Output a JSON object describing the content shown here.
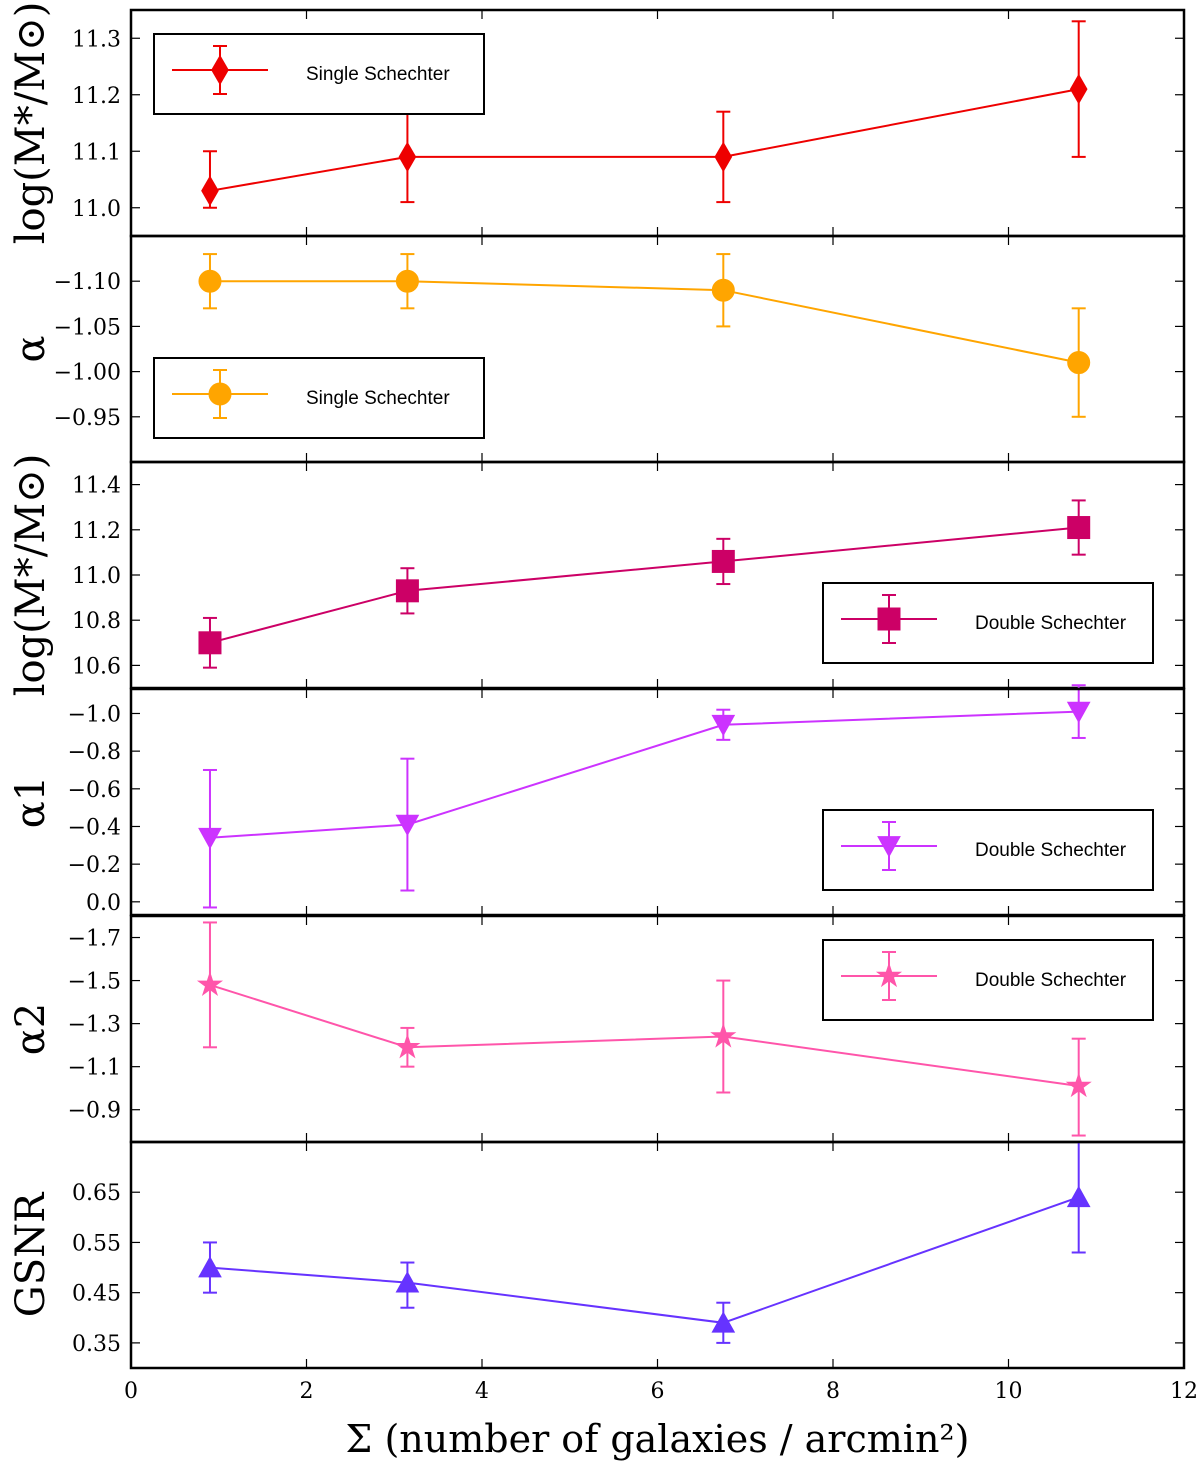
{
  "chart_data": {
    "type": "line",
    "xlabel": "Σ (number of galaxies / arcmin²)",
    "xlim": [
      0,
      12
    ],
    "xticks": [
      0,
      2,
      4,
      6,
      8,
      10,
      12
    ],
    "x": [
      0.9,
      3.15,
      6.75,
      10.8
    ],
    "panels": [
      {
        "ylabel": "log(M*/M⊙)",
        "ylim": [
          10.95,
          11.35
        ],
        "yticks": [
          11.0,
          11.1,
          11.2,
          11.3
        ],
        "ytick_labels": [
          "11.0",
          "11.1",
          "11.2",
          "11.3"
        ],
        "inverted": false,
        "series": {
          "name": "Single Schechter",
          "color": "#ee0000",
          "marker": "diamond",
          "values": [
            11.03,
            11.09,
            11.09,
            11.21
          ],
          "err_low": [
            11.0,
            11.01,
            11.01,
            11.09
          ],
          "err_high": [
            11.1,
            11.17,
            11.17,
            11.33
          ]
        },
        "legend": {
          "label": "Single Schechter",
          "position": "upper-left"
        }
      },
      {
        "ylabel": "α",
        "ylim": [
          -0.9,
          -1.15
        ],
        "yticks": [
          -0.95,
          -1.0,
          -1.05,
          -1.1
        ],
        "ytick_labels": [
          "−0.95",
          "−1.00",
          "−1.05",
          "−1.10"
        ],
        "inverted": true,
        "series": {
          "name": "Single Schechter",
          "color": "#ffa500",
          "marker": "circle",
          "values": [
            -1.1,
            -1.1,
            -1.09,
            -1.01
          ],
          "err_low": [
            -1.07,
            -1.07,
            -1.05,
            -0.95
          ],
          "err_high": [
            -1.13,
            -1.13,
            -1.13,
            -1.07
          ]
        },
        "legend": {
          "label": "Single Schechter",
          "position": "lower-left"
        }
      },
      {
        "ylabel": "log(M*/M⊙)",
        "ylim": [
          10.5,
          11.5
        ],
        "yticks": [
          10.6,
          10.8,
          11.0,
          11.2,
          11.4
        ],
        "ytick_labels": [
          "10.6",
          "10.8",
          "11.0",
          "11.2",
          "11.4"
        ],
        "inverted": false,
        "series": {
          "name": "Double Schechter",
          "color": "#cc0066",
          "marker": "square",
          "values": [
            10.7,
            10.93,
            11.06,
            11.21
          ],
          "err_low": [
            10.59,
            10.83,
            10.96,
            11.09
          ],
          "err_high": [
            10.81,
            11.03,
            11.16,
            11.33
          ]
        },
        "legend": {
          "label": "Double Schechter",
          "position": "lower-right"
        }
      },
      {
        "ylabel": "α1",
        "ylim": [
          0.07,
          -1.13
        ],
        "yticks": [
          0.0,
          -0.2,
          -0.4,
          -0.6,
          -0.8,
          -1.0
        ],
        "ytick_labels": [
          "0.0",
          "−0.2",
          "−0.4",
          "−0.6",
          "−0.8",
          "−1.0"
        ],
        "inverted": true,
        "series": {
          "name": "Double Schechter",
          "color": "#cc33ff",
          "marker": "triangle-down",
          "values": [
            -0.34,
            -0.41,
            -0.94,
            -1.01
          ],
          "err_low": [
            0.03,
            -0.06,
            -0.86,
            -0.87
          ],
          "err_high": [
            -0.7,
            -0.76,
            -1.02,
            -1.15
          ]
        },
        "legend": {
          "label": "Double Schechter",
          "position": "lower-right"
        }
      },
      {
        "ylabel": "α2",
        "ylim": [
          -0.75,
          -1.8
        ],
        "yticks": [
          -0.9,
          -1.1,
          -1.3,
          -1.5,
          -1.7
        ],
        "ytick_labels": [
          "−0.9",
          "−1.1",
          "−1.3",
          "−1.5",
          "−1.7"
        ],
        "inverted": true,
        "series": {
          "name": "Double Schechter",
          "color": "#ff55aa",
          "marker": "star",
          "values": [
            -1.48,
            -1.19,
            -1.24,
            -1.01
          ],
          "err_low": [
            -1.19,
            -1.1,
            -0.98,
            -0.78
          ],
          "err_high": [
            -1.77,
            -1.28,
            -1.5,
            -1.23
          ]
        },
        "legend": {
          "label": "Double Schechter",
          "position": "upper-right"
        }
      },
      {
        "ylabel": "GSNR",
        "ylim": [
          0.3,
          0.75
        ],
        "yticks": [
          0.35,
          0.45,
          0.55,
          0.65
        ],
        "ytick_labels": [
          "0.35",
          "0.45",
          "0.55",
          "0.65"
        ],
        "inverted": false,
        "series": {
          "name": "GSNR",
          "color": "#6633ff",
          "marker": "triangle-up",
          "values": [
            0.5,
            0.47,
            0.39,
            0.64
          ],
          "err_low": [
            0.45,
            0.42,
            0.35,
            0.53
          ],
          "err_high": [
            0.55,
            0.51,
            0.43,
            0.75
          ]
        },
        "legend": null
      }
    ]
  }
}
